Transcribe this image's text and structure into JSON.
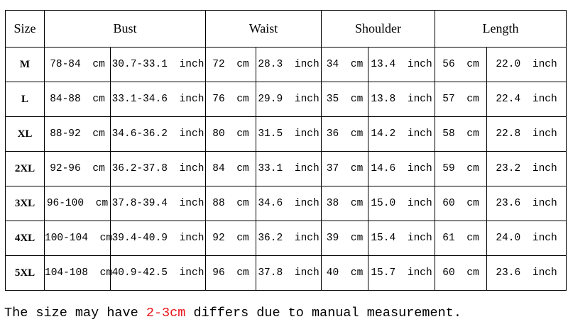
{
  "table": {
    "header": [
      "Size",
      "Bust",
      "Waist",
      "Shoulder",
      "Length"
    ],
    "rows": [
      [
        "M",
        "78-84 cm",
        "30.7-33.1 inch",
        "72 cm",
        "28.3 inch",
        "34 cm",
        "13.4 inch",
        "56 cm",
        "22.0 inch"
      ],
      [
        "L",
        "84-88 cm",
        "33.1-34.6 inch",
        "76 cm",
        "29.9 inch",
        "35 cm",
        "13.8 inch",
        "57 cm",
        "22.4 inch"
      ],
      [
        "XL",
        "88-92 cm",
        "34.6-36.2 inch",
        "80 cm",
        "31.5 inch",
        "36 cm",
        "14.2 inch",
        "58 cm",
        "22.8 inch"
      ],
      [
        "2XL",
        "92-96 cm",
        "36.2-37.8 inch",
        "84 cm",
        "33.1 inch",
        "37 cm",
        "14.6 inch",
        "59 cm",
        "23.2 inch"
      ],
      [
        "3XL",
        "96-100 cm",
        "37.8-39.4 inch",
        "88 cm",
        "34.6 inch",
        "38 cm",
        "15.0 inch",
        "60 cm",
        "23.6 inch"
      ],
      [
        "4XL",
        "100-104 cm",
        "39.4-40.9 inch",
        "92 cm",
        "36.2 inch",
        "39 cm",
        "15.4 inch",
        "61 cm",
        "24.0 inch"
      ],
      [
        "5XL",
        "104-108 cm",
        "40.9-42.5 inch",
        "96 cm",
        "37.8 inch",
        "40 cm",
        "15.7 inch",
        "60 cm",
        "23.6 inch"
      ]
    ]
  },
  "note": {
    "before": "The size may have ",
    "highlight": "2-3cm",
    "after": " differs due to manual measurement."
  }
}
